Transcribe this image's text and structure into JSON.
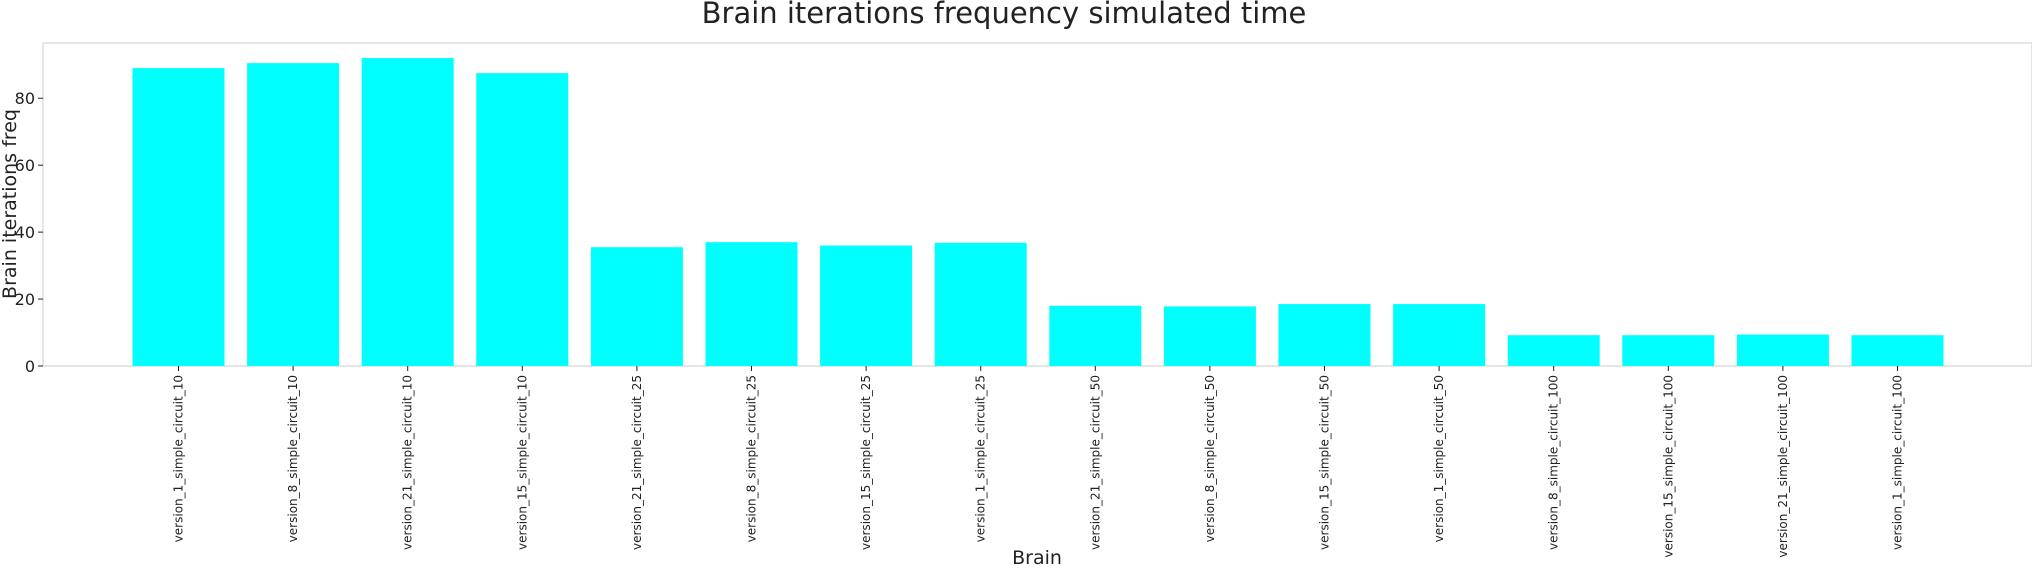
{
  "chart_data": {
    "type": "bar",
    "title": "Brain iterations frequency simulated time",
    "xlabel": "Brain",
    "ylabel": "Brain iterations freq",
    "categories": [
      "version_1_simple_circuit_10",
      "version_8_simple_circuit_10",
      "version_21_simple_circuit_10",
      "version_15_simple_circuit_10",
      "version_21_simple_circuit_25",
      "version_8_simple_circuit_25",
      "version_15_simple_circuit_25",
      "version_1_simple_circuit_25",
      "version_21_simple_circuit_50",
      "version_8_simple_circuit_50",
      "version_15_simple_circuit_50",
      "version_1_simple_circuit_50",
      "version_8_simple_circuit_100",
      "version_15_simple_circuit_100",
      "version_21_simple_circuit_100",
      "version_1_simple_circuit_100"
    ],
    "values": [
      89.0,
      90.5,
      92.0,
      87.5,
      35.5,
      37.0,
      36.0,
      36.8,
      18.0,
      17.8,
      18.5,
      18.5,
      9.2,
      9.2,
      9.4,
      9.2
    ],
    "yticks": [
      0,
      20,
      40,
      60,
      80
    ],
    "ylim": [
      0,
      96.5
    ],
    "grid": false,
    "bar_color": "#00FFFF"
  }
}
